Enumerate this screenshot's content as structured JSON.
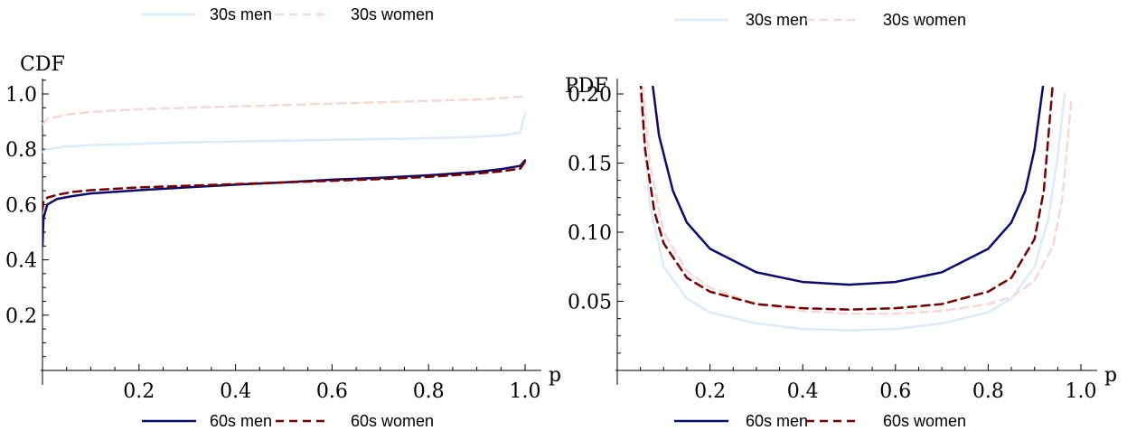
{
  "chart_data": [
    {
      "type": "line",
      "ylabel": "CDF",
      "xlabel": "p",
      "xlim": [
        0,
        1
      ],
      "ylim": [
        0,
        1.05
      ],
      "x_ticks": [
        0.2,
        0.4,
        0.6,
        0.8,
        1.0
      ],
      "x_tick_labels": [
        "0.2",
        "0.4",
        "0.6",
        "0.8",
        "1.0"
      ],
      "y_ticks": [
        0.2,
        0.4,
        0.6,
        0.8,
        1.0
      ],
      "y_tick_labels": [
        "0.2",
        "0.4",
        "0.6",
        "0.8",
        "1.0"
      ],
      "grid": false,
      "legend_top": [
        "30s men",
        "30s women"
      ],
      "legend_bottom": [
        "60s men",
        "60s women"
      ],
      "series": [
        {
          "name": "30s men",
          "color": "#dcebfb",
          "dash": "solid",
          "x": [
            0.0,
            0.01,
            0.05,
            0.1,
            0.2,
            0.3,
            0.4,
            0.5,
            0.6,
            0.7,
            0.8,
            0.9,
            0.95,
            0.99,
            1.0
          ],
          "y": [
            0.79,
            0.8,
            0.81,
            0.815,
            0.82,
            0.825,
            0.828,
            0.831,
            0.834,
            0.837,
            0.84,
            0.845,
            0.85,
            0.86,
            0.93
          ]
        },
        {
          "name": "30s women",
          "color": "#fad7d7",
          "dash": "dashed",
          "x": [
            0.0,
            0.01,
            0.05,
            0.1,
            0.2,
            0.3,
            0.4,
            0.5,
            0.6,
            0.7,
            0.8,
            0.9,
            0.95,
            0.99,
            1.0
          ],
          "y": [
            0.89,
            0.91,
            0.925,
            0.935,
            0.945,
            0.95,
            0.955,
            0.96,
            0.965,
            0.97,
            0.975,
            0.98,
            0.985,
            0.99,
            0.997
          ]
        },
        {
          "name": "60s men",
          "color": "#0b0b6e",
          "dash": "solid",
          "x": [
            0.0,
            0.002,
            0.01,
            0.03,
            0.06,
            0.1,
            0.2,
            0.3,
            0.4,
            0.5,
            0.6,
            0.7,
            0.8,
            0.9,
            0.95,
            0.99,
            1.0
          ],
          "y": [
            0.45,
            0.55,
            0.6,
            0.62,
            0.63,
            0.64,
            0.652,
            0.662,
            0.672,
            0.68,
            0.69,
            0.697,
            0.706,
            0.718,
            0.728,
            0.74,
            0.76
          ]
        },
        {
          "name": "60s women",
          "color": "#7a0000",
          "dash": "dashed",
          "x": [
            0.0,
            0.002,
            0.01,
            0.03,
            0.06,
            0.1,
            0.2,
            0.3,
            0.4,
            0.5,
            0.6,
            0.7,
            0.8,
            0.9,
            0.95,
            0.99,
            1.0
          ],
          "y": [
            0.58,
            0.61,
            0.625,
            0.635,
            0.645,
            0.652,
            0.662,
            0.668,
            0.674,
            0.68,
            0.686,
            0.692,
            0.7,
            0.712,
            0.72,
            0.73,
            0.755
          ]
        }
      ]
    },
    {
      "type": "line",
      "ylabel": "PDF",
      "xlabel": "p",
      "xlim": [
        0,
        1
      ],
      "ylim": [
        0,
        0.21
      ],
      "x_ticks": [
        0.2,
        0.4,
        0.6,
        0.8,
        1.0
      ],
      "x_tick_labels": [
        "0.2",
        "0.4",
        "0.6",
        "0.8",
        "1.0"
      ],
      "y_ticks": [
        0.05,
        0.1,
        0.15,
        0.2
      ],
      "y_tick_labels": [
        "0.05",
        "0.10",
        "0.15",
        "0.20"
      ],
      "grid": false,
      "legend_top": [
        "30s men",
        "30s women"
      ],
      "legend_bottom": [
        "60s men",
        "60s women"
      ],
      "series": [
        {
          "name": "30s men",
          "color": "#dcebfb",
          "dash": "solid",
          "x": [
            0.05,
            0.07,
            0.1,
            0.15,
            0.2,
            0.3,
            0.4,
            0.5,
            0.6,
            0.7,
            0.8,
            0.85,
            0.9,
            0.93,
            0.95,
            0.965
          ],
          "y": [
            0.2,
            0.12,
            0.075,
            0.052,
            0.042,
            0.034,
            0.03,
            0.029,
            0.03,
            0.034,
            0.042,
            0.052,
            0.075,
            0.11,
            0.155,
            0.2
          ]
        },
        {
          "name": "30s women",
          "color": "#fad7d7",
          "dash": "dashed",
          "x": [
            0.055,
            0.07,
            0.1,
            0.15,
            0.2,
            0.3,
            0.4,
            0.5,
            0.6,
            0.7,
            0.8,
            0.85,
            0.9,
            0.94,
            0.96,
            0.98
          ],
          "y": [
            0.205,
            0.15,
            0.1,
            0.072,
            0.06,
            0.048,
            0.043,
            0.041,
            0.041,
            0.043,
            0.048,
            0.053,
            0.065,
            0.09,
            0.125,
            0.198
          ]
        },
        {
          "name": "60s men",
          "color": "#0b0b6e",
          "dash": "solid",
          "x": [
            0.075,
            0.09,
            0.12,
            0.15,
            0.2,
            0.3,
            0.4,
            0.5,
            0.6,
            0.7,
            0.8,
            0.85,
            0.88,
            0.9,
            0.92
          ],
          "y": [
            0.21,
            0.17,
            0.13,
            0.107,
            0.088,
            0.071,
            0.064,
            0.062,
            0.064,
            0.071,
            0.088,
            0.107,
            0.13,
            0.16,
            0.21
          ]
        },
        {
          "name": "60s women",
          "color": "#7a0000",
          "dash": "dashed",
          "x": [
            0.05,
            0.06,
            0.08,
            0.1,
            0.15,
            0.2,
            0.3,
            0.4,
            0.5,
            0.6,
            0.7,
            0.8,
            0.85,
            0.9,
            0.92,
            0.94
          ],
          "y": [
            0.21,
            0.16,
            0.115,
            0.092,
            0.067,
            0.057,
            0.048,
            0.045,
            0.044,
            0.045,
            0.048,
            0.057,
            0.067,
            0.095,
            0.13,
            0.21
          ]
        }
      ]
    }
  ]
}
